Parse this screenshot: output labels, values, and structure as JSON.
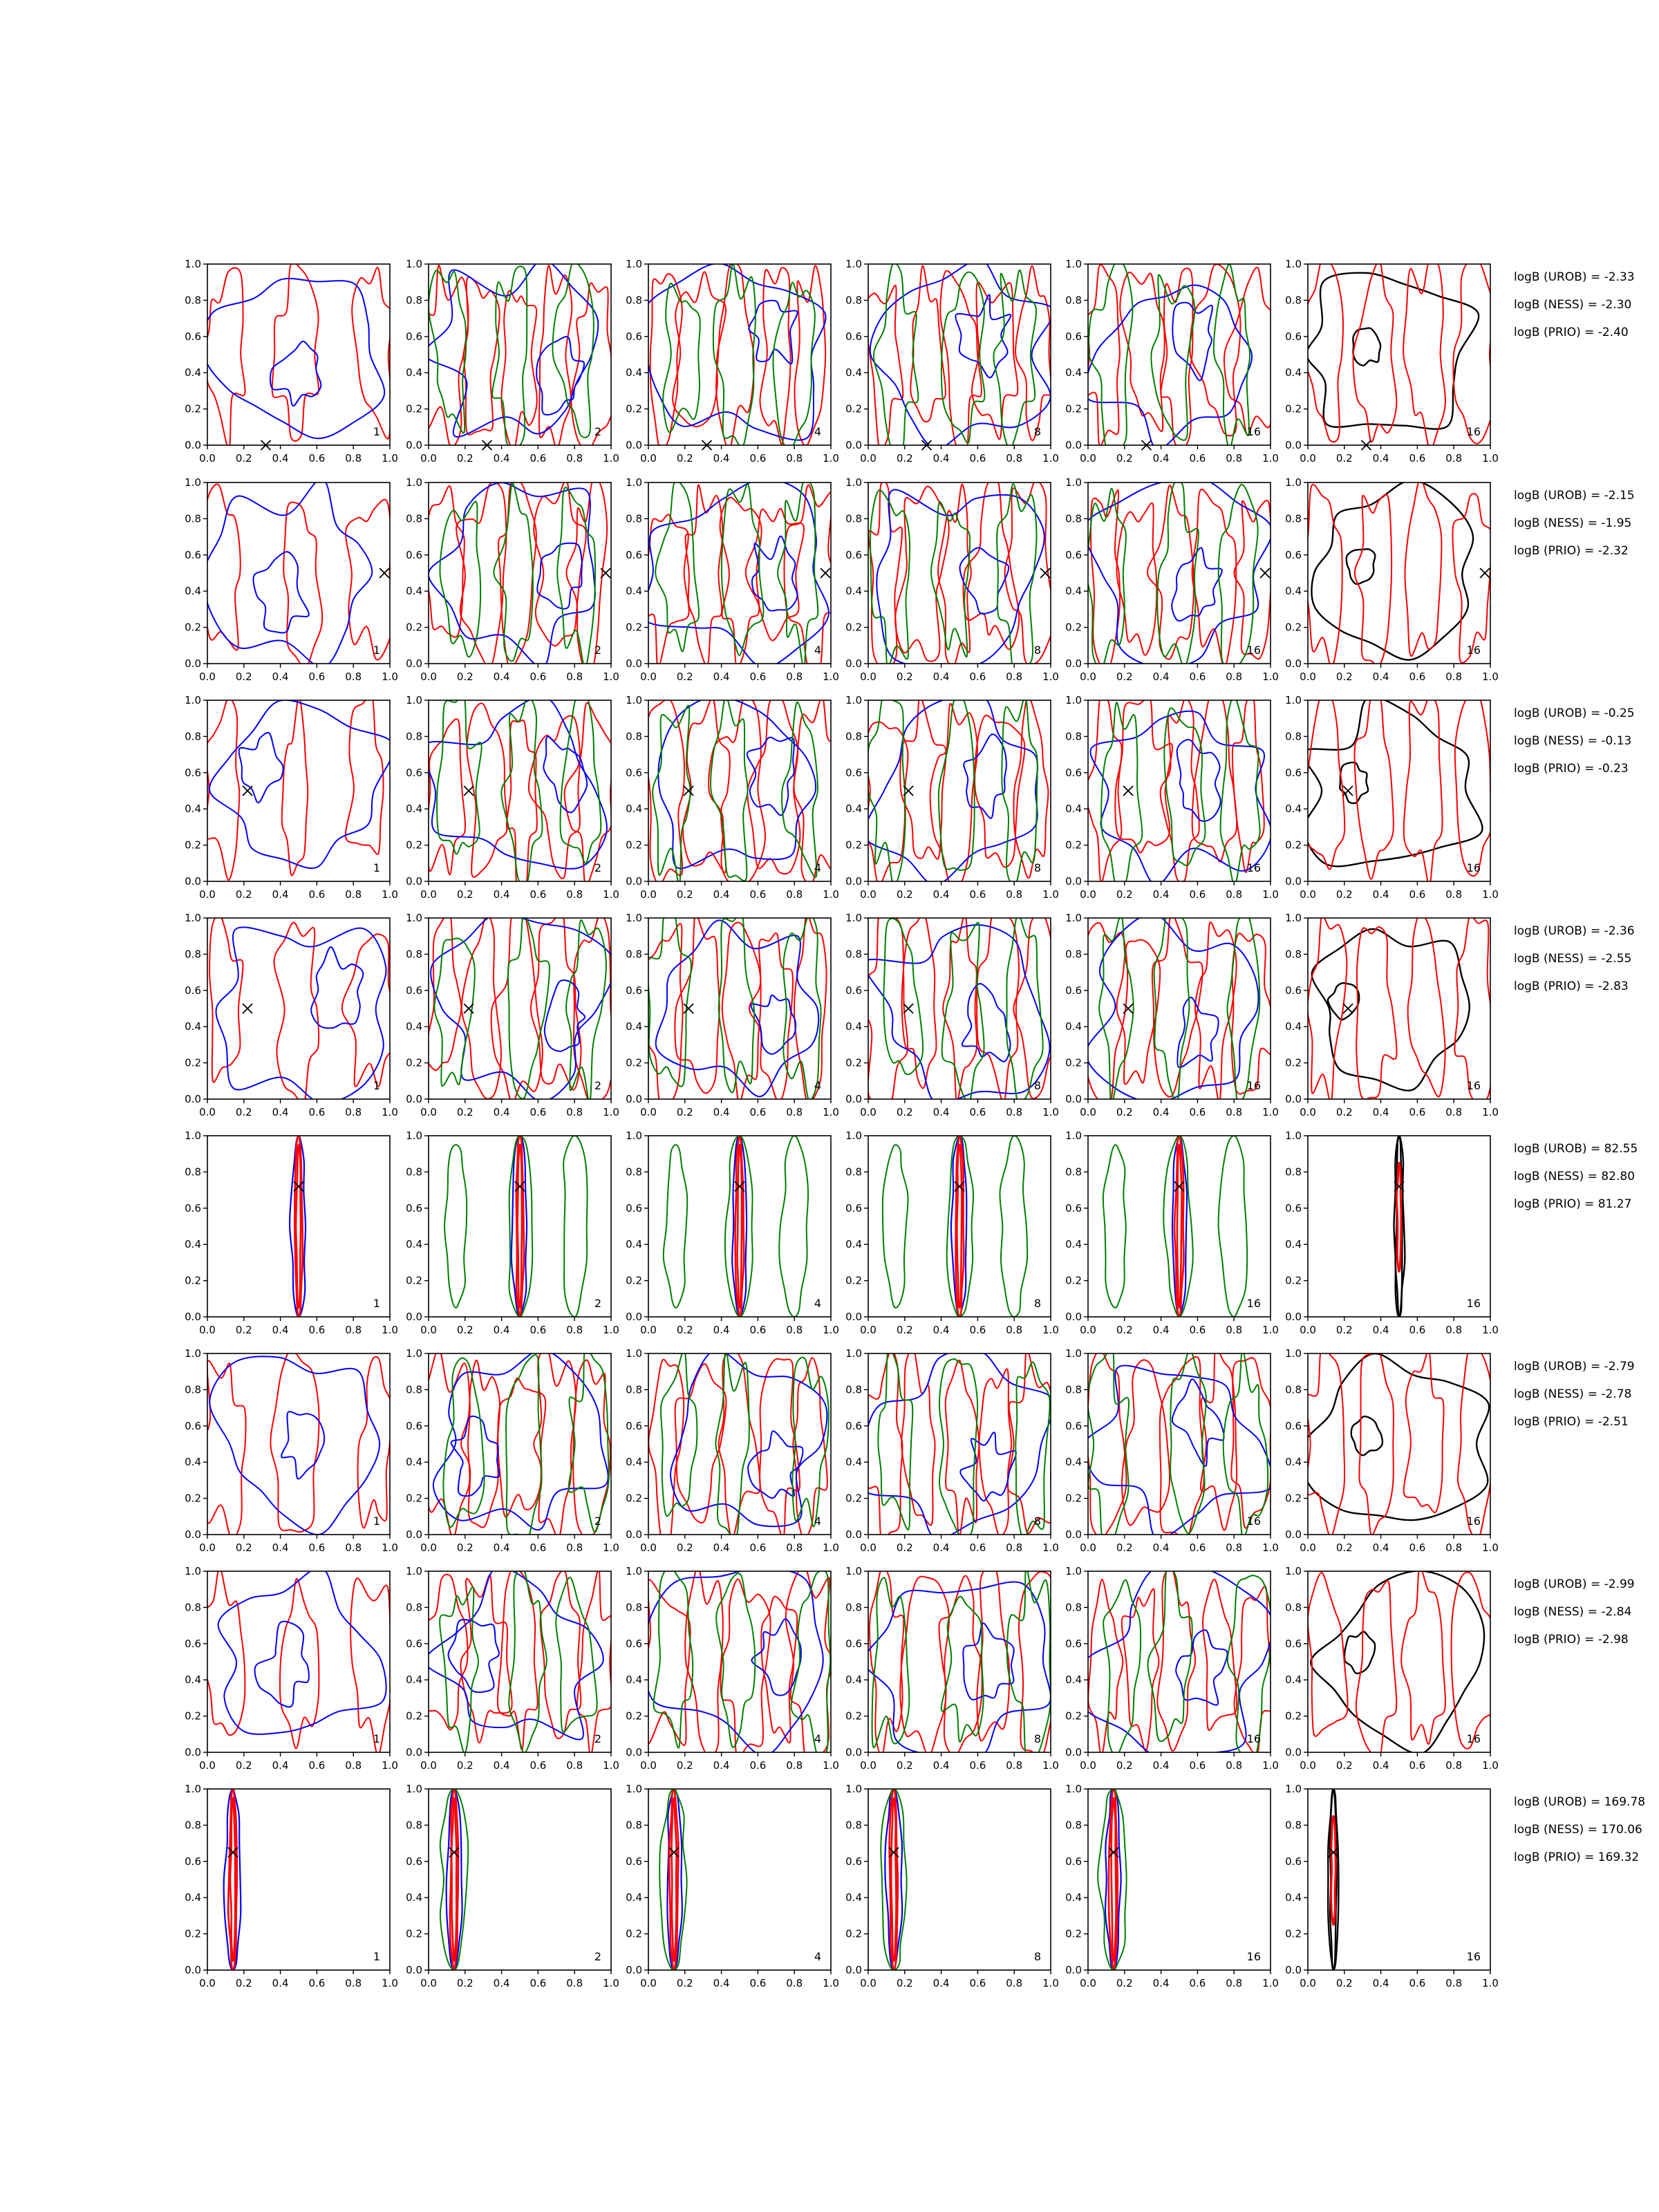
{
  "chart_data": {
    "type": "contour",
    "grid": {
      "rows": 8,
      "cols": 6
    },
    "axis": {
      "xlim": [
        0,
        1
      ],
      "ylim": [
        0,
        1
      ],
      "xticks": [
        "0.0",
        "0.2",
        "0.4",
        "0.6",
        "0.8",
        "1.0"
      ],
      "yticks": [
        "0.0",
        "0.2",
        "0.4",
        "0.6",
        "0.8",
        "1.0"
      ]
    },
    "colors": {
      "blue": "#0000ff",
      "red": "#ff0000",
      "green": "#008000",
      "black": "#000000"
    },
    "column_labels": [
      "1",
      "2",
      "4",
      "8",
      "16",
      "16"
    ],
    "rows": [
      {
        "marker": [
          0.32,
          0.0
        ],
        "bayes_factors": [
          "logB (UROB) = -2.33",
          "logB (NESS) = -2.30",
          "logB (PRIO) = -2.40"
        ]
      },
      {
        "marker": [
          0.97,
          0.5
        ],
        "bayes_factors": [
          "logB (UROB) = -2.15",
          "logB (NESS) = -1.95",
          "logB (PRIO) = -2.32"
        ]
      },
      {
        "marker": [
          0.22,
          0.5
        ],
        "bayes_factors": [
          "logB (UROB) = -0.25",
          "logB (NESS) = -0.13",
          "logB (PRIO) = -0.23"
        ]
      },
      {
        "marker": [
          0.22,
          0.5
        ],
        "bayes_factors": [
          "logB (UROB) = -2.36",
          "logB (NESS) = -2.55",
          "logB (PRIO) = -2.83"
        ]
      },
      {
        "marker": [
          0.5,
          0.72
        ],
        "bayes_factors": [
          "logB (UROB) = 82.55",
          "logB (NESS) = 82.80",
          "logB (PRIO) = 81.27"
        ]
      },
      {
        "marker": null,
        "bayes_factors": [
          "logB (UROB) = -2.79",
          "logB (NESS) = -2.78",
          "logB (PRIO) = -2.51"
        ]
      },
      {
        "marker": null,
        "bayes_factors": [
          "logB (UROB) = -2.99",
          "logB (NESS) = -2.84",
          "logB (PRIO) = -2.98"
        ]
      },
      {
        "marker": [
          0.14,
          0.65
        ],
        "bayes_factors": [
          "logB (UROB) = 169.78",
          "logB (NESS) = 170.06",
          "logB (PRIO) = 169.32"
        ]
      }
    ]
  }
}
